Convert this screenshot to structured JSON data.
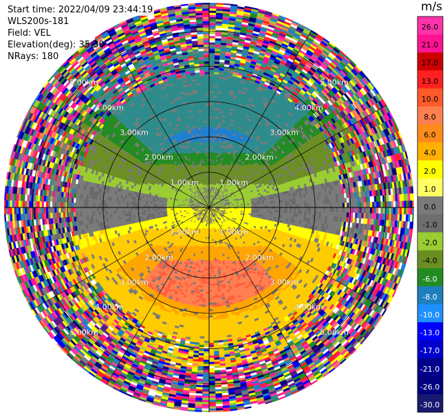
{
  "header": {
    "start_time": "Start time: 2022/04/09 23:44:19",
    "site": "WLS200s-181",
    "field": "Field: VEL",
    "elevation": "Elevation(deg): 35.30",
    "nrays": "NRays: 180"
  },
  "chart_data": {
    "type": "heatmap",
    "projection": "polar-ppi",
    "field": "VEL",
    "unit": "m/s",
    "n_rays": 180,
    "elevation_deg": 35.3,
    "range_km": [
      0,
      5.8
    ],
    "ring_labels": [
      {
        "km": 1.0,
        "text": "1.00km"
      },
      {
        "km": 2.0,
        "text": "2.00km"
      },
      {
        "km": 3.0,
        "text": "3.00km"
      },
      {
        "km": 4.0,
        "text": "4.00km"
      },
      {
        "km": 5.0,
        "text": "5.00km"
      }
    ],
    "spokes_deg": [
      0,
      30,
      60,
      90,
      120,
      150,
      180,
      210,
      240,
      270,
      300,
      330
    ],
    "colorbar": {
      "unit": "m/s",
      "ticks": [
        "26.0",
        "21.0",
        "17.0",
        "13.0",
        "10.0",
        "8.0",
        "6.0",
        "4.0",
        "2.0",
        "1.0",
        "0.0",
        "-1.0",
        "-2.0",
        "-4.0",
        "-6.0",
        "-8.0",
        "-10.0",
        "-13.0",
        "-17.0",
        "-21.0",
        "-26.0",
        "-30.0"
      ],
      "colors": [
        "#ff33aa",
        "#ff1493",
        "#cc0000",
        "#ff2020",
        "#ff5a2a",
        "#ff7f50",
        "#ff8c1a",
        "#ffb000",
        "#ffff00",
        "#ffff66",
        "#7a7a7a",
        "#6e6e6e",
        "#9acd32",
        "#6b8e23",
        "#228b22",
        "#1e7fbf",
        "#1e90ff",
        "#0000ff",
        "#0000cd",
        "#00008b",
        "#000080",
        "#191970"
      ]
    }
  }
}
